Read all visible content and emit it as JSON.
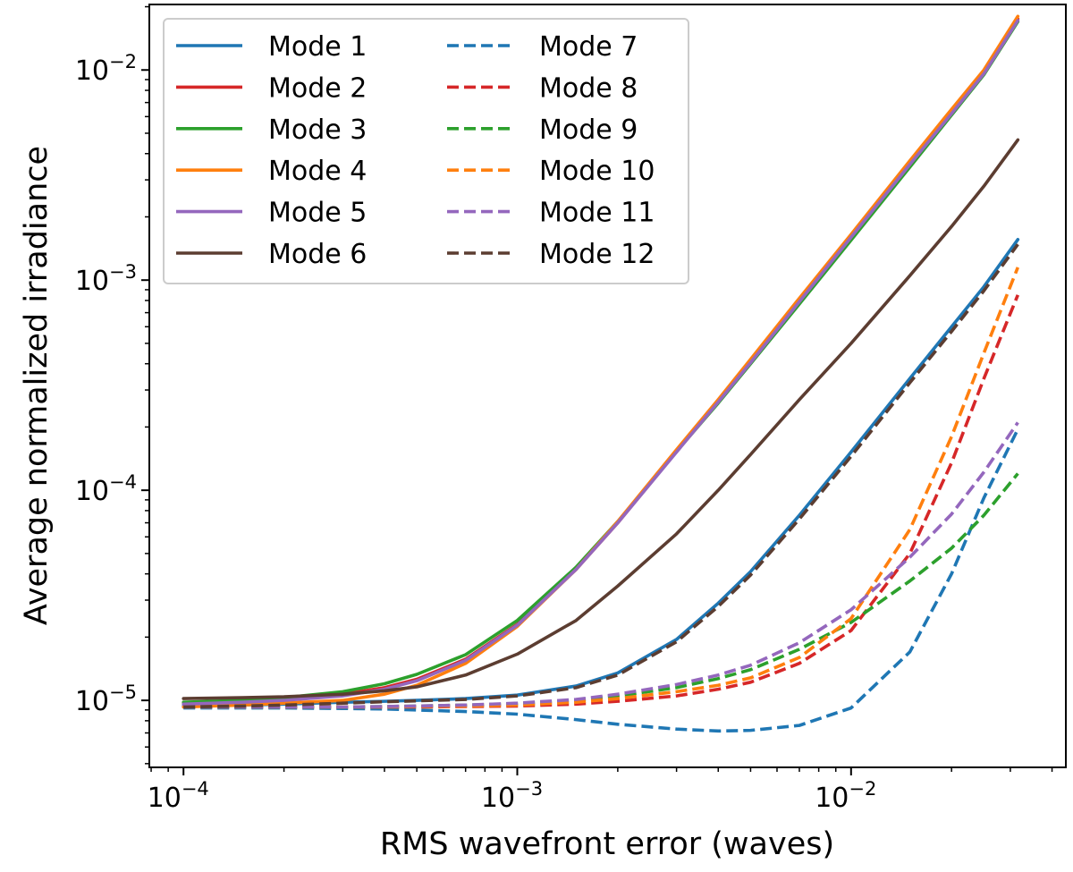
{
  "chart_data": {
    "type": "line",
    "title": "",
    "xlabel": "RMS wavefront error (waves)",
    "ylabel": "Average normalized irradiance",
    "xscale": "log",
    "yscale": "log",
    "xlim": [
      7.9e-05,
      0.044
    ],
    "ylim": [
      4.8e-06,
      0.0205
    ],
    "x_ticks": [
      {
        "value": 0.0001,
        "base": "10",
        "exp": "−4"
      },
      {
        "value": 0.001,
        "base": "10",
        "exp": "−3"
      },
      {
        "value": 0.01,
        "base": "10",
        "exp": "−2"
      }
    ],
    "y_ticks": [
      {
        "value": 1e-05,
        "base": "10",
        "exp": "−5"
      },
      {
        "value": 0.0001,
        "base": "10",
        "exp": "−4"
      },
      {
        "value": 0.001,
        "base": "10",
        "exp": "−3"
      },
      {
        "value": 0.01,
        "base": "10",
        "exp": "−2"
      }
    ],
    "legend_position": "top-left",
    "x": [
      0.0001,
      0.00015,
      0.0002,
      0.0003,
      0.0004,
      0.0005,
      0.0007,
      0.001,
      0.0015,
      0.002,
      0.003,
      0.004,
      0.005,
      0.007,
      0.01,
      0.015,
      0.02,
      0.025,
      0.0316
    ],
    "series": [
      {
        "name": "Mode 1",
        "color": "#1f77b4",
        "dash": "solid",
        "values": [
          9.4e-06,
          9.5e-06,
          9.6e-06,
          9.8e-06,
          9.9e-06,
          1e-05,
          1.02e-05,
          1.06e-05,
          1.17e-05,
          1.35e-05,
          1.95e-05,
          2.9e-05,
          4.1e-05,
          7.6e-05,
          0.000152,
          0.00034,
          0.0006,
          0.00093,
          0.00156
        ]
      },
      {
        "name": "Mode 2",
        "color": "#d62728",
        "dash": "solid",
        "values": [
          9.7e-06,
          9.9e-06,
          1.01e-05,
          1.07e-05,
          1.15e-05,
          1.26e-05,
          1.57e-05,
          2.3e-05,
          4.2e-05,
          7e-05,
          0.000153,
          0.000265,
          0.00041,
          0.0008,
          0.00162,
          0.0036,
          0.0063,
          0.0098,
          0.0175
        ]
      },
      {
        "name": "Mode 3",
        "color": "#2ca02c",
        "dash": "solid",
        "values": [
          9.8e-06,
          1e-05,
          1.03e-05,
          1.1e-05,
          1.2e-05,
          1.33e-05,
          1.65e-05,
          2.4e-05,
          4.3e-05,
          7.1e-05,
          0.000153,
          0.00026,
          0.0004,
          0.00077,
          0.00155,
          0.00345,
          0.0061,
          0.0095,
          0.017
        ]
      },
      {
        "name": "Mode 4",
        "color": "#ff7f0e",
        "dash": "solid",
        "values": [
          9.3e-06,
          9.5e-06,
          9.7e-06,
          1e-05,
          1.07e-05,
          1.18e-05,
          1.5e-05,
          2.25e-05,
          4.2e-05,
          7.1e-05,
          0.000156,
          0.00027,
          0.00042,
          0.00082,
          0.00165,
          0.0037,
          0.0065,
          0.01,
          0.018
        ]
      },
      {
        "name": "Mode 5",
        "color": "#9467bd",
        "dash": "solid",
        "values": [
          9.6e-06,
          9.8e-06,
          1e-05,
          1.05e-05,
          1.13e-05,
          1.24e-05,
          1.55e-05,
          2.28e-05,
          4.2e-05,
          7e-05,
          0.000152,
          0.000263,
          0.000405,
          0.00079,
          0.0016,
          0.00355,
          0.0062,
          0.0096,
          0.0172
        ]
      },
      {
        "name": "Mode 6",
        "color": "#5c3d31",
        "dash": "solid",
        "values": [
          1.02e-05,
          1.03e-05,
          1.04e-05,
          1.07e-05,
          1.11e-05,
          1.16e-05,
          1.32e-05,
          1.66e-05,
          2.4e-05,
          3.5e-05,
          6.2e-05,
          0.0001,
          0.000148,
          0.00027,
          0.0005,
          0.00105,
          0.0018,
          0.0028,
          0.00465
        ]
      },
      {
        "name": "Mode 7",
        "color": "#1f77b4",
        "dash": "dashed",
        "values": [
          9.2e-06,
          9.2e-06,
          9.2e-06,
          9.15e-06,
          9.1e-06,
          9e-06,
          8.85e-06,
          8.6e-06,
          8.1e-06,
          7.7e-06,
          7.3e-06,
          7.15e-06,
          7.2e-06,
          7.6e-06,
          9.2e-06,
          1.7e-05,
          4e-05,
          9.2e-05,
          0.000195
        ]
      },
      {
        "name": "Mode 8",
        "color": "#d62728",
        "dash": "dashed",
        "values": [
          9.3e-06,
          9.3e-06,
          9.3e-06,
          9.3e-06,
          9.3e-06,
          9.3e-06,
          9.35e-06,
          9.4e-06,
          9.6e-06,
          9.9e-06,
          1.05e-05,
          1.13e-05,
          1.22e-05,
          1.5e-05,
          2.15e-05,
          5e-05,
          0.000135,
          0.00034,
          0.00085
        ]
      },
      {
        "name": "Mode 9",
        "color": "#2ca02c",
        "dash": "dashed",
        "values": [
          9.3e-06,
          9.3e-06,
          9.3e-06,
          9.3e-06,
          9.35e-06,
          9.4e-06,
          9.5e-06,
          9.65e-06,
          1e-05,
          1.05e-05,
          1.15e-05,
          1.27e-05,
          1.4e-05,
          1.75e-05,
          2.35e-05,
          3.7e-05,
          5.3e-05,
          7.6e-05,
          0.00012
        ]
      },
      {
        "name": "Mode 10",
        "color": "#ff7f0e",
        "dash": "dashed",
        "values": [
          9.3e-06,
          9.3e-06,
          9.3e-06,
          9.3e-06,
          9.3e-06,
          9.35e-06,
          9.4e-06,
          9.5e-06,
          9.8e-06,
          1.02e-05,
          1.1e-05,
          1.18e-05,
          1.28e-05,
          1.6e-05,
          2.45e-05,
          6.5e-05,
          0.00018,
          0.00045,
          0.00115
        ]
      },
      {
        "name": "Mode 11",
        "color": "#9467bd",
        "dash": "dashed",
        "values": [
          9.3e-06,
          9.3e-06,
          9.3e-06,
          9.3e-06,
          9.35e-06,
          9.4e-06,
          9.5e-06,
          9.7e-06,
          1.01e-05,
          1.07e-05,
          1.19e-05,
          1.32e-05,
          1.47e-05,
          1.88e-05,
          2.7e-05,
          4.8e-05,
          7.7e-05,
          0.000122,
          0.00021
        ]
      },
      {
        "name": "Mode 12",
        "color": "#5c3d31",
        "dash": "dashed",
        "values": [
          9.3e-06,
          9.4e-06,
          9.5e-06,
          9.7e-06,
          9.85e-06,
          9.95e-06,
          1.01e-05,
          1.05e-05,
          1.15e-05,
          1.32e-05,
          1.9e-05,
          2.8e-05,
          3.95e-05,
          7.3e-05,
          0.000145,
          0.000325,
          0.00057,
          0.00089,
          0.00148
        ]
      }
    ]
  }
}
